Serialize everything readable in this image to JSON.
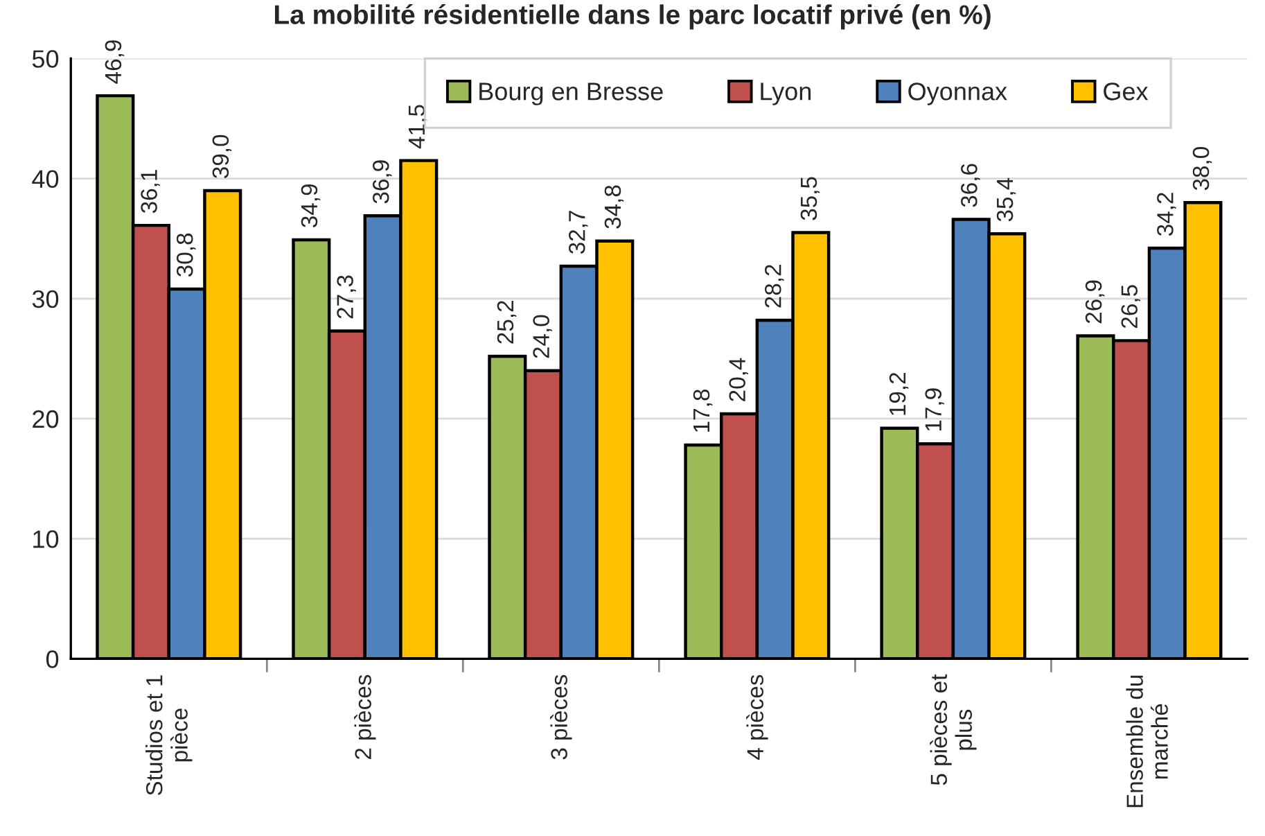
{
  "chart_data": {
    "type": "bar",
    "title": "La mobilité résidentielle dans le parc locatif privé (en %)",
    "categories": [
      "Studios et 1\npièce",
      "2 pièces",
      "3 pièces",
      "4 pièces",
      "5 pièces et\nplus",
      "Ensemble du\nmarché"
    ],
    "series": [
      {
        "name": "Bourg en Bresse",
        "color": "#9bbb59",
        "values": [
          46.9,
          34.9,
          25.2,
          17.8,
          19.2,
          26.9
        ],
        "value_labels": [
          "46,9",
          "34,9",
          "25,2",
          "17,8",
          "19,2",
          "26,9"
        ]
      },
      {
        "name": "Lyon",
        "color": "#c0504d",
        "values": [
          36.1,
          27.3,
          24.0,
          20.4,
          17.9,
          26.5
        ],
        "value_labels": [
          "36,1",
          "27,3",
          "24,0",
          "20,4",
          "17,9",
          "26,5"
        ]
      },
      {
        "name": "Oyonnax",
        "color": "#4f81bd",
        "values": [
          30.8,
          36.9,
          32.7,
          28.2,
          36.6,
          34.2
        ],
        "value_labels": [
          "30,8",
          "36,9",
          "32,7",
          "28,2",
          "36,6",
          "34,2"
        ]
      },
      {
        "name": "Gex",
        "color": "#ffc000",
        "values": [
          39.0,
          41.5,
          34.8,
          35.5,
          35.4,
          38.0
        ],
        "value_labels": [
          "39,0",
          "41,5",
          "34,8",
          "35,5",
          "35,4",
          "38,0"
        ]
      }
    ],
    "ylim": [
      0,
      50
    ],
    "yticks": [
      0,
      10,
      20,
      30,
      40,
      50
    ],
    "grid": "y",
    "legend": "top right"
  }
}
